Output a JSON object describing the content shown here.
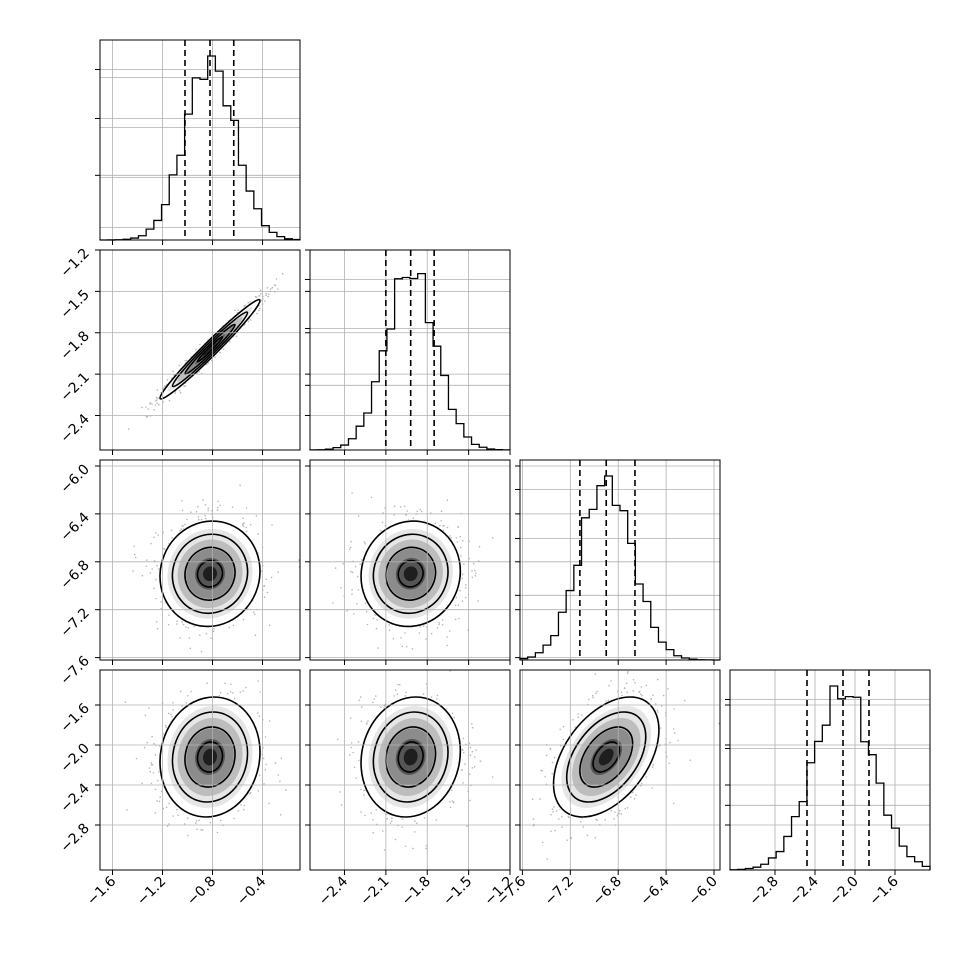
{
  "chart_data": {
    "type": "corner",
    "num_parameters": 4,
    "levels": [
      0.5,
      1.0,
      1.5,
      2.0
    ],
    "grid": true,
    "axes": [
      {
        "name": "",
        "range": [
          -1.7,
          -0.1
        ],
        "ticks": [
          -1.6,
          -1.2,
          -0.8,
          -0.4
        ],
        "tick_labels": [
          "−1.6",
          "−1.2",
          "−0.8",
          "−0.4"
        ],
        "mean": -0.82,
        "std": 0.2,
        "quantiles": [
          -1.02,
          -0.82,
          -0.63
        ]
      },
      {
        "name": "",
        "range": [
          -2.65,
          -1.2
        ],
        "ticks": [
          -2.4,
          -2.1,
          -1.8,
          -1.5,
          -1.2
        ],
        "tick_labels": [
          "−2.4",
          "−2.1",
          "−1.8",
          "−1.5",
          "−1.2"
        ],
        "mean": -1.92,
        "std": 0.18,
        "quantiles": [
          -2.1,
          -1.92,
          -1.75
        ]
      },
      {
        "name": "",
        "range": [
          -7.62,
          -5.95
        ],
        "ticks": [
          -7.6,
          -7.2,
          -6.8,
          -6.4,
          -6.0
        ],
        "tick_labels": [
          "−7.6",
          "−7.2",
          "−6.8",
          "−6.4",
          "−6.0"
        ],
        "mean": -6.9,
        "std": 0.22,
        "quantiles": [
          -7.12,
          -6.9,
          -6.66
        ]
      },
      {
        "name": "",
        "range": [
          -3.25,
          -1.25
        ],
        "ticks": [
          -2.8,
          -2.4,
          -2.0,
          -1.6
        ],
        "tick_labels": [
          "−2.8",
          "−2.4",
          "−2.0",
          "−1.6"
        ],
        "mean": -2.12,
        "std": 0.3,
        "quantiles": [
          -2.48,
          -2.12,
          -1.86
        ]
      }
    ],
    "correlations": [
      [
        1.0,
        0.98,
        0.05,
        0.08
      ],
      [
        0.98,
        1.0,
        0.05,
        0.1
      ],
      [
        0.05,
        0.05,
        1.0,
        0.45
      ],
      [
        0.08,
        0.1,
        0.45,
        1.0
      ]
    ]
  }
}
